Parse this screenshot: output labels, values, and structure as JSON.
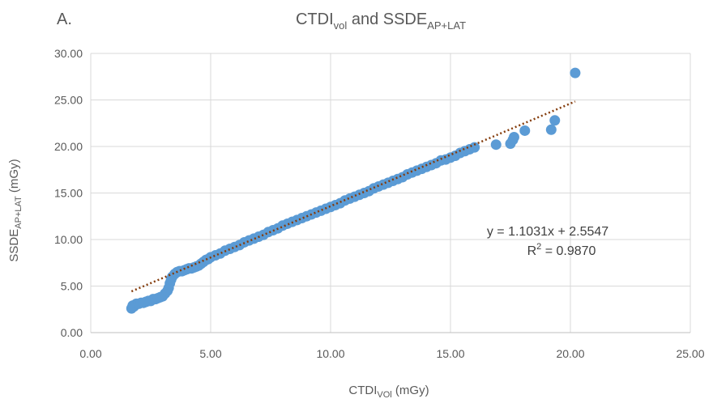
{
  "panel_label": "A.",
  "title": {
    "main1": "CTDI",
    "sub1": "vol",
    "main2": " and SSDE",
    "sub2": "AP+LAT"
  },
  "x_axis_title": {
    "main": "CTDI",
    "sub": "VOl",
    "unit": " (mGy)"
  },
  "y_axis_title": {
    "main": "SSDE",
    "sub": "AP+LAT",
    "unit": " (mGy)"
  },
  "equation": {
    "line1": "y = 1.1031x + 2.5547",
    "r2_prefix": "R",
    "r2_sup": "2",
    "r2_suffix": " = 0.9870"
  },
  "colors": {
    "points": "#5b9bd5",
    "trendline": "#843c0c",
    "text": "#595959",
    "grid": "#d9d9d9"
  },
  "chart_data": {
    "type": "scatter",
    "title": "CTDIvol and SSDEAP+LAT",
    "xlabel": "CTDIVOl (mGy)",
    "ylabel": "SSDEAP+LAT (mGy)",
    "xlim": [
      0,
      25
    ],
    "ylim": [
      0,
      30
    ],
    "x_ticks": [
      "0.00",
      "5.00",
      "10.00",
      "15.00",
      "20.00",
      "25.00"
    ],
    "y_ticks": [
      "0.00",
      "5.00",
      "10.00",
      "15.00",
      "20.00",
      "25.00",
      "30.00"
    ],
    "x_tick_values": [
      0,
      5,
      10,
      15,
      20,
      25
    ],
    "y_tick_values": [
      0,
      5,
      10,
      15,
      20,
      25,
      30
    ],
    "grid": true,
    "legend": "none",
    "trendline": {
      "type": "linear",
      "slope": 1.1031,
      "intercept": 2.5547,
      "x_range": [
        1.7,
        20.2
      ],
      "r_squared": 0.987
    },
    "series": [
      {
        "x": [
          1.7,
          1.75,
          1.8,
          1.9,
          2.0,
          2.1,
          2.2,
          2.3,
          2.4,
          2.5,
          2.6,
          2.7,
          2.8,
          2.9,
          3.0,
          3.1,
          3.2,
          3.25,
          3.3,
          3.35,
          3.4,
          3.5,
          3.6,
          3.7,
          3.8,
          3.9,
          4.0,
          4.1,
          4.2,
          4.3,
          4.4,
          4.5,
          4.6,
          4.7,
          4.8,
          4.9,
          5.0,
          5.2,
          5.4,
          5.6,
          5.8,
          6.0,
          6.2,
          6.4,
          6.6,
          6.8,
          7.0,
          7.2,
          7.4,
          7.6,
          7.8,
          8.0,
          8.2,
          8.4,
          8.6,
          8.8,
          9.0,
          9.2,
          9.4,
          9.6,
          9.8,
          10.0,
          10.2,
          10.4,
          10.6,
          10.8,
          11.0,
          11.2,
          11.4,
          11.6,
          11.8,
          12.0,
          12.2,
          12.4,
          12.6,
          12.8,
          13.0,
          13.2,
          13.4,
          13.6,
          13.8,
          14.0,
          14.2,
          14.4,
          14.6,
          14.8,
          15.0,
          15.2,
          15.4,
          15.6,
          15.8,
          16.0,
          16.9,
          17.5,
          17.6,
          17.65,
          18.1,
          19.2,
          19.35,
          20.2
        ],
        "y": [
          2.6,
          2.9,
          2.8,
          3.1,
          3.1,
          3.2,
          3.2,
          3.3,
          3.4,
          3.4,
          3.6,
          3.6,
          3.7,
          3.8,
          3.9,
          4.2,
          4.5,
          4.8,
          5.3,
          5.7,
          6.0,
          6.3,
          6.5,
          6.6,
          6.6,
          6.7,
          6.8,
          6.9,
          6.9,
          7.0,
          7.1,
          7.2,
          7.4,
          7.6,
          7.8,
          7.9,
          8.1,
          8.3,
          8.5,
          8.8,
          9.0,
          9.2,
          9.4,
          9.7,
          9.9,
          10.1,
          10.3,
          10.5,
          10.8,
          11.0,
          11.2,
          11.5,
          11.7,
          11.9,
          12.1,
          12.3,
          12.5,
          12.7,
          12.9,
          13.1,
          13.3,
          13.5,
          13.7,
          13.9,
          14.2,
          14.4,
          14.6,
          14.8,
          15.0,
          15.2,
          15.5,
          15.7,
          15.9,
          16.1,
          16.3,
          16.5,
          16.7,
          17.0,
          17.2,
          17.4,
          17.6,
          17.8,
          18.0,
          18.2,
          18.5,
          18.6,
          18.8,
          19.0,
          19.3,
          19.5,
          19.7,
          19.9,
          20.2,
          20.3,
          20.7,
          21.0,
          21.7,
          21.8,
          22.8,
          27.9
        ]
      }
    ]
  }
}
